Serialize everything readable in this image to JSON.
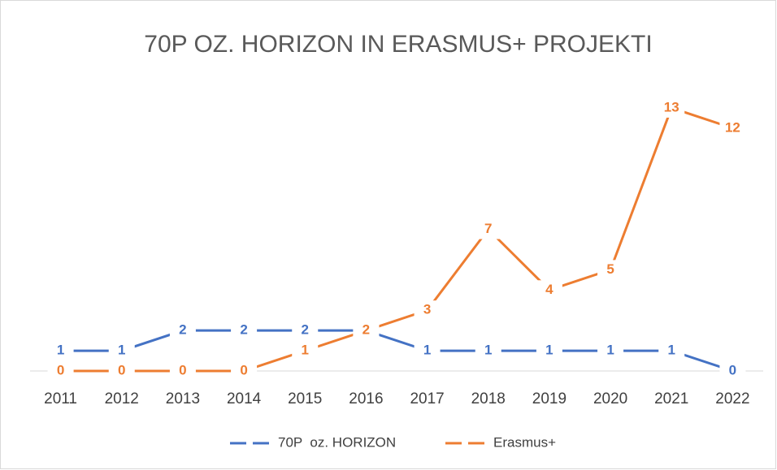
{
  "chart_data": {
    "type": "line",
    "title": "70P OZ. HORIZON IN ERASMUS+ PROJEKTI",
    "categories": [
      "2011",
      "2012",
      "2013",
      "2014",
      "2015",
      "2016",
      "2017",
      "2018",
      "2019",
      "2020",
      "2021",
      "2022"
    ],
    "series": [
      {
        "name": "70P  oz. HORIZON",
        "color": "#4472c4",
        "values": [
          1,
          1,
          2,
          2,
          2,
          2,
          1,
          1,
          1,
          1,
          1,
          0
        ]
      },
      {
        "name": "Erasmus+",
        "color": "#ed7d31",
        "values": [
          0,
          0,
          0,
          0,
          1,
          2,
          3,
          7,
          4,
          5,
          13,
          12
        ]
      }
    ],
    "ylim": [
      0,
      14
    ],
    "legend": "bottom"
  }
}
